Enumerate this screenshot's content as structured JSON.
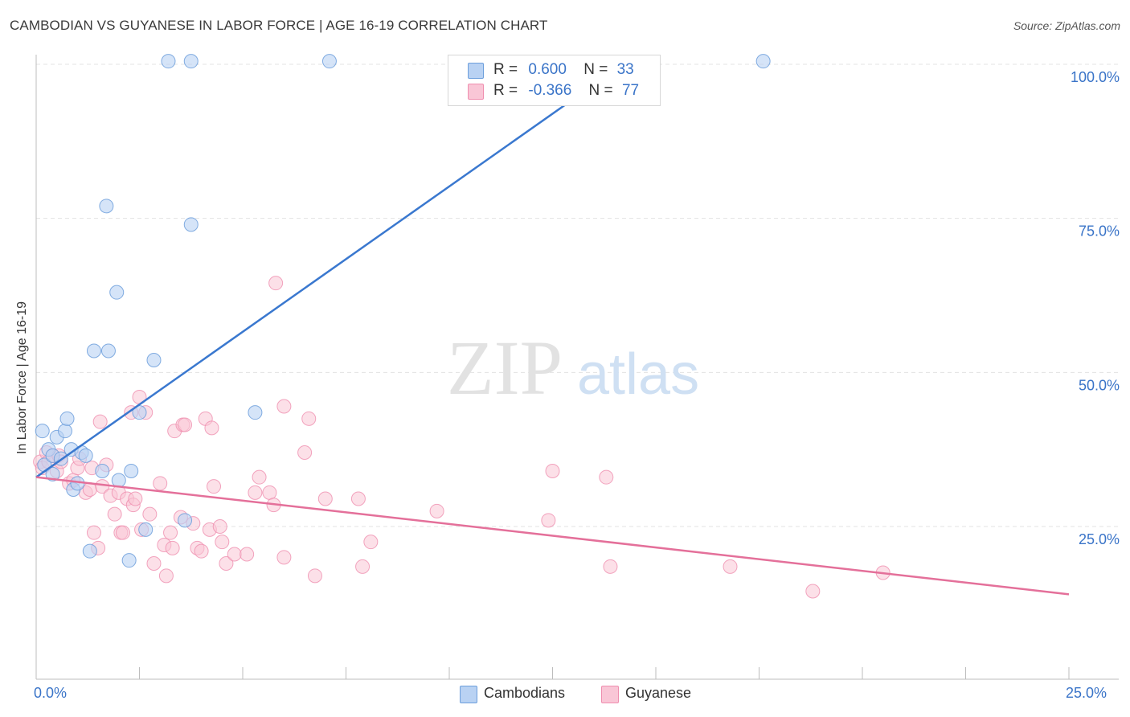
{
  "header": {
    "title": "CAMBODIAN VS GUYANESE IN LABOR FORCE | AGE 16-19 CORRELATION CHART",
    "source": "Source: ZipAtlas.com"
  },
  "watermark": {
    "zip": "ZIP",
    "atlas": "atlas"
  },
  "colors": {
    "blue_fill": "#b9d2f3",
    "blue_stroke": "#6d9fdc",
    "blue_line": "#3a78cf",
    "pink_fill": "#f9c6d6",
    "pink_stroke": "#ef8eaf",
    "pink_line": "#e4709a",
    "tick_label": "#3a74c8"
  },
  "legend": {
    "rows": [
      {
        "r_label": "R =",
        "r_value": "0.600",
        "n_label": "N =",
        "n_value": "33"
      },
      {
        "r_label": "R =",
        "r_value": "-0.366",
        "n_label": "N =",
        "n_value": "77"
      }
    ]
  },
  "bottom_legend": {
    "series1": "Cambodians",
    "series2": "Guyanese"
  },
  "chart_data": {
    "type": "scatter",
    "title": "CAMBODIAN VS GUYANESE IN LABOR FORCE | AGE 16-19 CORRELATION CHART",
    "xlabel": "",
    "ylabel": "In Labor Force | Age 16-19",
    "xlim": [
      0,
      25
    ],
    "ylim": [
      0,
      103
    ],
    "x_tick_labels": [
      "0.0%",
      "25.0%"
    ],
    "y_ticks": [
      25,
      50,
      75,
      100
    ],
    "y_tick_labels": [
      "25.0%",
      "50.0%",
      "75.0%",
      "100.0%"
    ],
    "series": [
      {
        "name": "Cambodians",
        "r": 0.6,
        "n": 33,
        "trend": {
          "x": [
            0.0,
            14.2
          ],
          "y": [
            33.0,
            100.0
          ]
        },
        "points": [
          [
            0.15,
            40.5
          ],
          [
            0.2,
            35.0
          ],
          [
            0.3,
            37.5
          ],
          [
            0.4,
            36.5
          ],
          [
            0.4,
            33.5
          ],
          [
            0.5,
            39.5
          ],
          [
            0.6,
            36.0
          ],
          [
            0.7,
            40.5
          ],
          [
            0.75,
            42.5
          ],
          [
            0.85,
            37.5
          ],
          [
            0.9,
            31.0
          ],
          [
            1.0,
            32.0
          ],
          [
            1.1,
            37.0
          ],
          [
            1.2,
            36.5
          ],
          [
            1.3,
            21.0
          ],
          [
            1.4,
            53.5
          ],
          [
            1.6,
            34.0
          ],
          [
            1.7,
            77.0
          ],
          [
            1.75,
            53.5
          ],
          [
            1.95,
            63.0
          ],
          [
            2.0,
            32.5
          ],
          [
            2.25,
            19.5
          ],
          [
            2.3,
            34.0
          ],
          [
            2.5,
            43.5
          ],
          [
            2.65,
            24.5
          ],
          [
            2.85,
            52.0
          ],
          [
            3.2,
            100.5
          ],
          [
            3.6,
            26.0
          ],
          [
            3.75,
            100.5
          ],
          [
            3.75,
            74.0
          ],
          [
            7.1,
            100.5
          ],
          [
            17.6,
            100.5
          ],
          [
            5.3,
            43.5
          ]
        ]
      },
      {
        "name": "Guyanese",
        "r": -0.366,
        "n": 77,
        "trend": {
          "x": [
            0.0,
            25.0
          ],
          "y": [
            33.0,
            14.0
          ]
        },
        "points": [
          [
            0.1,
            35.5
          ],
          [
            0.15,
            34.5
          ],
          [
            0.25,
            37.0
          ],
          [
            0.3,
            35.5
          ],
          [
            0.4,
            36.5
          ],
          [
            0.5,
            34.0
          ],
          [
            0.55,
            36.5
          ],
          [
            0.6,
            35.5
          ],
          [
            0.8,
            32.0
          ],
          [
            0.9,
            32.5
          ],
          [
            1.0,
            34.5
          ],
          [
            1.05,
            36.0
          ],
          [
            1.2,
            30.5
          ],
          [
            1.3,
            31.0
          ],
          [
            1.35,
            34.5
          ],
          [
            1.4,
            24.0
          ],
          [
            1.5,
            21.5
          ],
          [
            1.55,
            42.0
          ],
          [
            1.6,
            31.5
          ],
          [
            1.7,
            35.0
          ],
          [
            1.8,
            30.0
          ],
          [
            1.9,
            27.0
          ],
          [
            2.0,
            30.5
          ],
          [
            2.05,
            24.0
          ],
          [
            2.1,
            24.0
          ],
          [
            2.2,
            29.5
          ],
          [
            2.3,
            43.5
          ],
          [
            2.35,
            28.5
          ],
          [
            2.4,
            29.5
          ],
          [
            2.5,
            46.0
          ],
          [
            2.55,
            24.5
          ],
          [
            2.65,
            43.5
          ],
          [
            2.75,
            27.0
          ],
          [
            2.85,
            19.0
          ],
          [
            3.0,
            32.0
          ],
          [
            3.1,
            22.0
          ],
          [
            3.15,
            17.0
          ],
          [
            3.25,
            24.0
          ],
          [
            3.3,
            21.5
          ],
          [
            3.35,
            40.5
          ],
          [
            3.5,
            26.5
          ],
          [
            3.55,
            41.5
          ],
          [
            3.6,
            41.5
          ],
          [
            3.8,
            25.5
          ],
          [
            3.9,
            21.5
          ],
          [
            4.0,
            21.0
          ],
          [
            4.1,
            42.5
          ],
          [
            4.2,
            24.5
          ],
          [
            4.25,
            41.0
          ],
          [
            4.3,
            31.5
          ],
          [
            4.45,
            25.0
          ],
          [
            4.5,
            22.5
          ],
          [
            4.6,
            19.0
          ],
          [
            4.8,
            20.5
          ],
          [
            5.1,
            20.5
          ],
          [
            5.3,
            30.5
          ],
          [
            5.4,
            33.0
          ],
          [
            5.65,
            30.5
          ],
          [
            5.75,
            28.5
          ],
          [
            5.8,
            64.5
          ],
          [
            6.0,
            44.5
          ],
          [
            6.0,
            20.0
          ],
          [
            6.5,
            37.0
          ],
          [
            6.6,
            42.5
          ],
          [
            6.75,
            17.0
          ],
          [
            7.0,
            29.5
          ],
          [
            7.8,
            29.5
          ],
          [
            7.9,
            18.5
          ],
          [
            8.1,
            22.5
          ],
          [
            9.7,
            27.5
          ],
          [
            12.4,
            26.0
          ],
          [
            12.5,
            34.0
          ],
          [
            13.8,
            33.0
          ],
          [
            13.9,
            18.5
          ],
          [
            16.8,
            18.5
          ],
          [
            18.8,
            14.5
          ],
          [
            20.5,
            17.5
          ]
        ]
      }
    ]
  }
}
